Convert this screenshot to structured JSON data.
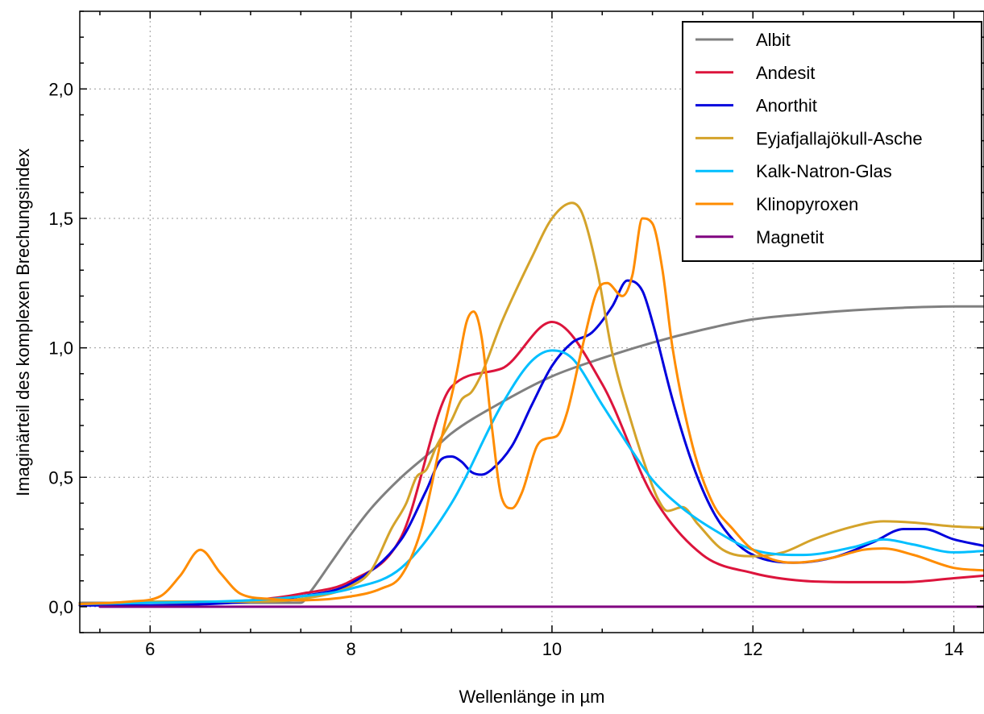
{
  "chart_data": {
    "type": "line",
    "title": "",
    "xlabel": "Wellenlänge in µm",
    "ylabel": "Imaginärteil des komplexen Brechungsindex",
    "xlim": [
      5.3,
      14.3
    ],
    "ylim": [
      -0.1,
      2.3
    ],
    "grid": true,
    "legend_position": "top-right",
    "x_ticks": [
      {
        "value": 6,
        "label": "6"
      },
      {
        "value": 8,
        "label": "8"
      },
      {
        "value": 10,
        "label": "10"
      },
      {
        "value": 12,
        "label": "12"
      },
      {
        "value": 14,
        "label": "14"
      }
    ],
    "y_ticks": [
      {
        "value": 0.0,
        "label": "0,0"
      },
      {
        "value": 0.5,
        "label": "0,5"
      },
      {
        "value": 1.0,
        "label": "1,0"
      },
      {
        "value": 1.5,
        "label": "1,5"
      },
      {
        "value": 2.0,
        "label": "2,0"
      }
    ],
    "series": [
      {
        "name": "Albit",
        "color": "#808080",
        "points": [
          [
            5.3,
            0.015
          ],
          [
            6,
            0.015
          ],
          [
            7,
            0.015
          ],
          [
            7.5,
            0.015
          ],
          [
            7.6,
            0.06
          ],
          [
            7.8,
            0.17
          ],
          [
            8,
            0.28
          ],
          [
            8.2,
            0.38
          ],
          [
            8.5,
            0.5
          ],
          [
            8.8,
            0.6
          ],
          [
            9,
            0.67
          ],
          [
            9.5,
            0.79
          ],
          [
            10,
            0.89
          ],
          [
            10.5,
            0.96
          ],
          [
            11,
            1.02
          ],
          [
            11.5,
            1.07
          ],
          [
            12,
            1.11
          ],
          [
            12.5,
            1.13
          ],
          [
            13,
            1.145
          ],
          [
            13.5,
            1.155
          ],
          [
            14,
            1.16
          ],
          [
            14.3,
            1.16
          ]
        ]
      },
      {
        "name": "Andesit",
        "color": "#DC143C",
        "points": [
          [
            5.3,
            0.01
          ],
          [
            6,
            0.015
          ],
          [
            7,
            0.025
          ],
          [
            7.5,
            0.05
          ],
          [
            8,
            0.1
          ],
          [
            8.5,
            0.27
          ],
          [
            9,
            0.85
          ],
          [
            9.5,
            0.92
          ],
          [
            10,
            1.1
          ],
          [
            10.5,
            0.86
          ],
          [
            11,
            0.43
          ],
          [
            11.5,
            0.2
          ],
          [
            12,
            0.13
          ],
          [
            12.5,
            0.1
          ],
          [
            13,
            0.095
          ],
          [
            13.5,
            0.095
          ],
          [
            14,
            0.11
          ],
          [
            14.3,
            0.12
          ]
        ]
      },
      {
        "name": "Anorthit",
        "color": "#0000DD",
        "points": [
          [
            5.3,
            0.005
          ],
          [
            6,
            0.005
          ],
          [
            7,
            0.02
          ],
          [
            7.5,
            0.04
          ],
          [
            8,
            0.09
          ],
          [
            8.5,
            0.26
          ],
          [
            8.75,
            0.45
          ],
          [
            8.9,
            0.57
          ],
          [
            9.0,
            0.58
          ],
          [
            9.1,
            0.56
          ],
          [
            9.2,
            0.52
          ],
          [
            9.3,
            0.51
          ],
          [
            9.4,
            0.53
          ],
          [
            9.6,
            0.62
          ],
          [
            9.8,
            0.78
          ],
          [
            10.0,
            0.93
          ],
          [
            10.2,
            1.02
          ],
          [
            10.4,
            1.06
          ],
          [
            10.6,
            1.16
          ],
          [
            10.75,
            1.26
          ],
          [
            10.9,
            1.22
          ],
          [
            11.0,
            1.1
          ],
          [
            11.2,
            0.8
          ],
          [
            11.4,
            0.55
          ],
          [
            11.6,
            0.37
          ],
          [
            11.8,
            0.26
          ],
          [
            12.0,
            0.2
          ],
          [
            12.4,
            0.17
          ],
          [
            12.8,
            0.19
          ],
          [
            13.2,
            0.25
          ],
          [
            13.5,
            0.3
          ],
          [
            13.7,
            0.3
          ],
          [
            14.0,
            0.26
          ],
          [
            14.3,
            0.235
          ]
        ]
      },
      {
        "name": "Eyjafjallajökull-Asche",
        "color": "#D4A32A",
        "points": [
          [
            5.3,
            0.01
          ],
          [
            6,
            0.02
          ],
          [
            7,
            0.02
          ],
          [
            7.5,
            0.03
          ],
          [
            8,
            0.08
          ],
          [
            8.2,
            0.14
          ],
          [
            8.4,
            0.3
          ],
          [
            8.55,
            0.4
          ],
          [
            8.65,
            0.5
          ],
          [
            8.75,
            0.53
          ],
          [
            8.85,
            0.62
          ],
          [
            9.0,
            0.72
          ],
          [
            9.1,
            0.8
          ],
          [
            9.2,
            0.83
          ],
          [
            9.3,
            0.9
          ],
          [
            9.5,
            1.1
          ],
          [
            9.8,
            1.35
          ],
          [
            10.0,
            1.5
          ],
          [
            10.2,
            1.56
          ],
          [
            10.3,
            1.52
          ],
          [
            10.45,
            1.3
          ],
          [
            10.6,
            0.98
          ],
          [
            10.8,
            0.7
          ],
          [
            10.95,
            0.52
          ],
          [
            11.05,
            0.42
          ],
          [
            11.15,
            0.37
          ],
          [
            11.3,
            0.385
          ],
          [
            11.45,
            0.32
          ],
          [
            11.7,
            0.22
          ],
          [
            12.0,
            0.195
          ],
          [
            12.3,
            0.21
          ],
          [
            12.6,
            0.26
          ],
          [
            13.0,
            0.31
          ],
          [
            13.3,
            0.33
          ],
          [
            13.6,
            0.325
          ],
          [
            14.0,
            0.31
          ],
          [
            14.3,
            0.305
          ]
        ]
      },
      {
        "name": "Kalk-Natron-Glas",
        "color": "#00BFFF",
        "points": [
          [
            5.3,
            0.01
          ],
          [
            6,
            0.015
          ],
          [
            7,
            0.025
          ],
          [
            7.5,
            0.04
          ],
          [
            8,
            0.07
          ],
          [
            8.5,
            0.15
          ],
          [
            9,
            0.4
          ],
          [
            9.5,
            0.78
          ],
          [
            9.8,
            0.95
          ],
          [
            10.0,
            0.99
          ],
          [
            10.2,
            0.96
          ],
          [
            10.5,
            0.78
          ],
          [
            10.8,
            0.6
          ],
          [
            11.0,
            0.49
          ],
          [
            11.3,
            0.38
          ],
          [
            11.6,
            0.3
          ],
          [
            12.0,
            0.22
          ],
          [
            12.5,
            0.2
          ],
          [
            13.0,
            0.23
          ],
          [
            13.3,
            0.26
          ],
          [
            13.6,
            0.24
          ],
          [
            14.0,
            0.21
          ],
          [
            14.3,
            0.215
          ]
        ]
      },
      {
        "name": "Klinopyroxen",
        "color": "#FF8C00",
        "points": [
          [
            5.3,
            0.01
          ],
          [
            5.8,
            0.02
          ],
          [
            6.1,
            0.04
          ],
          [
            6.3,
            0.12
          ],
          [
            6.5,
            0.22
          ],
          [
            6.7,
            0.13
          ],
          [
            6.9,
            0.05
          ],
          [
            7.2,
            0.03
          ],
          [
            7.5,
            0.025
          ],
          [
            8,
            0.04
          ],
          [
            8.3,
            0.07
          ],
          [
            8.5,
            0.12
          ],
          [
            8.7,
            0.3
          ],
          [
            8.9,
            0.65
          ],
          [
            9.05,
            0.9
          ],
          [
            9.15,
            1.1
          ],
          [
            9.22,
            1.14
          ],
          [
            9.3,
            1.04
          ],
          [
            9.4,
            0.7
          ],
          [
            9.5,
            0.42
          ],
          [
            9.6,
            0.38
          ],
          [
            9.7,
            0.44
          ],
          [
            9.85,
            0.62
          ],
          [
            9.95,
            0.65
          ],
          [
            10.05,
            0.66
          ],
          [
            10.15,
            0.75
          ],
          [
            10.3,
            1.0
          ],
          [
            10.45,
            1.22
          ],
          [
            10.55,
            1.25
          ],
          [
            10.7,
            1.2
          ],
          [
            10.8,
            1.28
          ],
          [
            10.9,
            1.5
          ],
          [
            11.0,
            1.48
          ],
          [
            11.1,
            1.3
          ],
          [
            11.2,
            1.0
          ],
          [
            11.4,
            0.62
          ],
          [
            11.6,
            0.4
          ],
          [
            11.8,
            0.3
          ],
          [
            12.0,
            0.22
          ],
          [
            12.4,
            0.17
          ],
          [
            12.8,
            0.19
          ],
          [
            13.1,
            0.22
          ],
          [
            13.3,
            0.225
          ],
          [
            13.6,
            0.2
          ],
          [
            14.0,
            0.15
          ],
          [
            14.3,
            0.14
          ]
        ]
      },
      {
        "name": "Magnetit",
        "color": "#800080",
        "points": [
          [
            5.5,
            0.0
          ],
          [
            14.3,
            0.0
          ]
        ]
      }
    ]
  }
}
